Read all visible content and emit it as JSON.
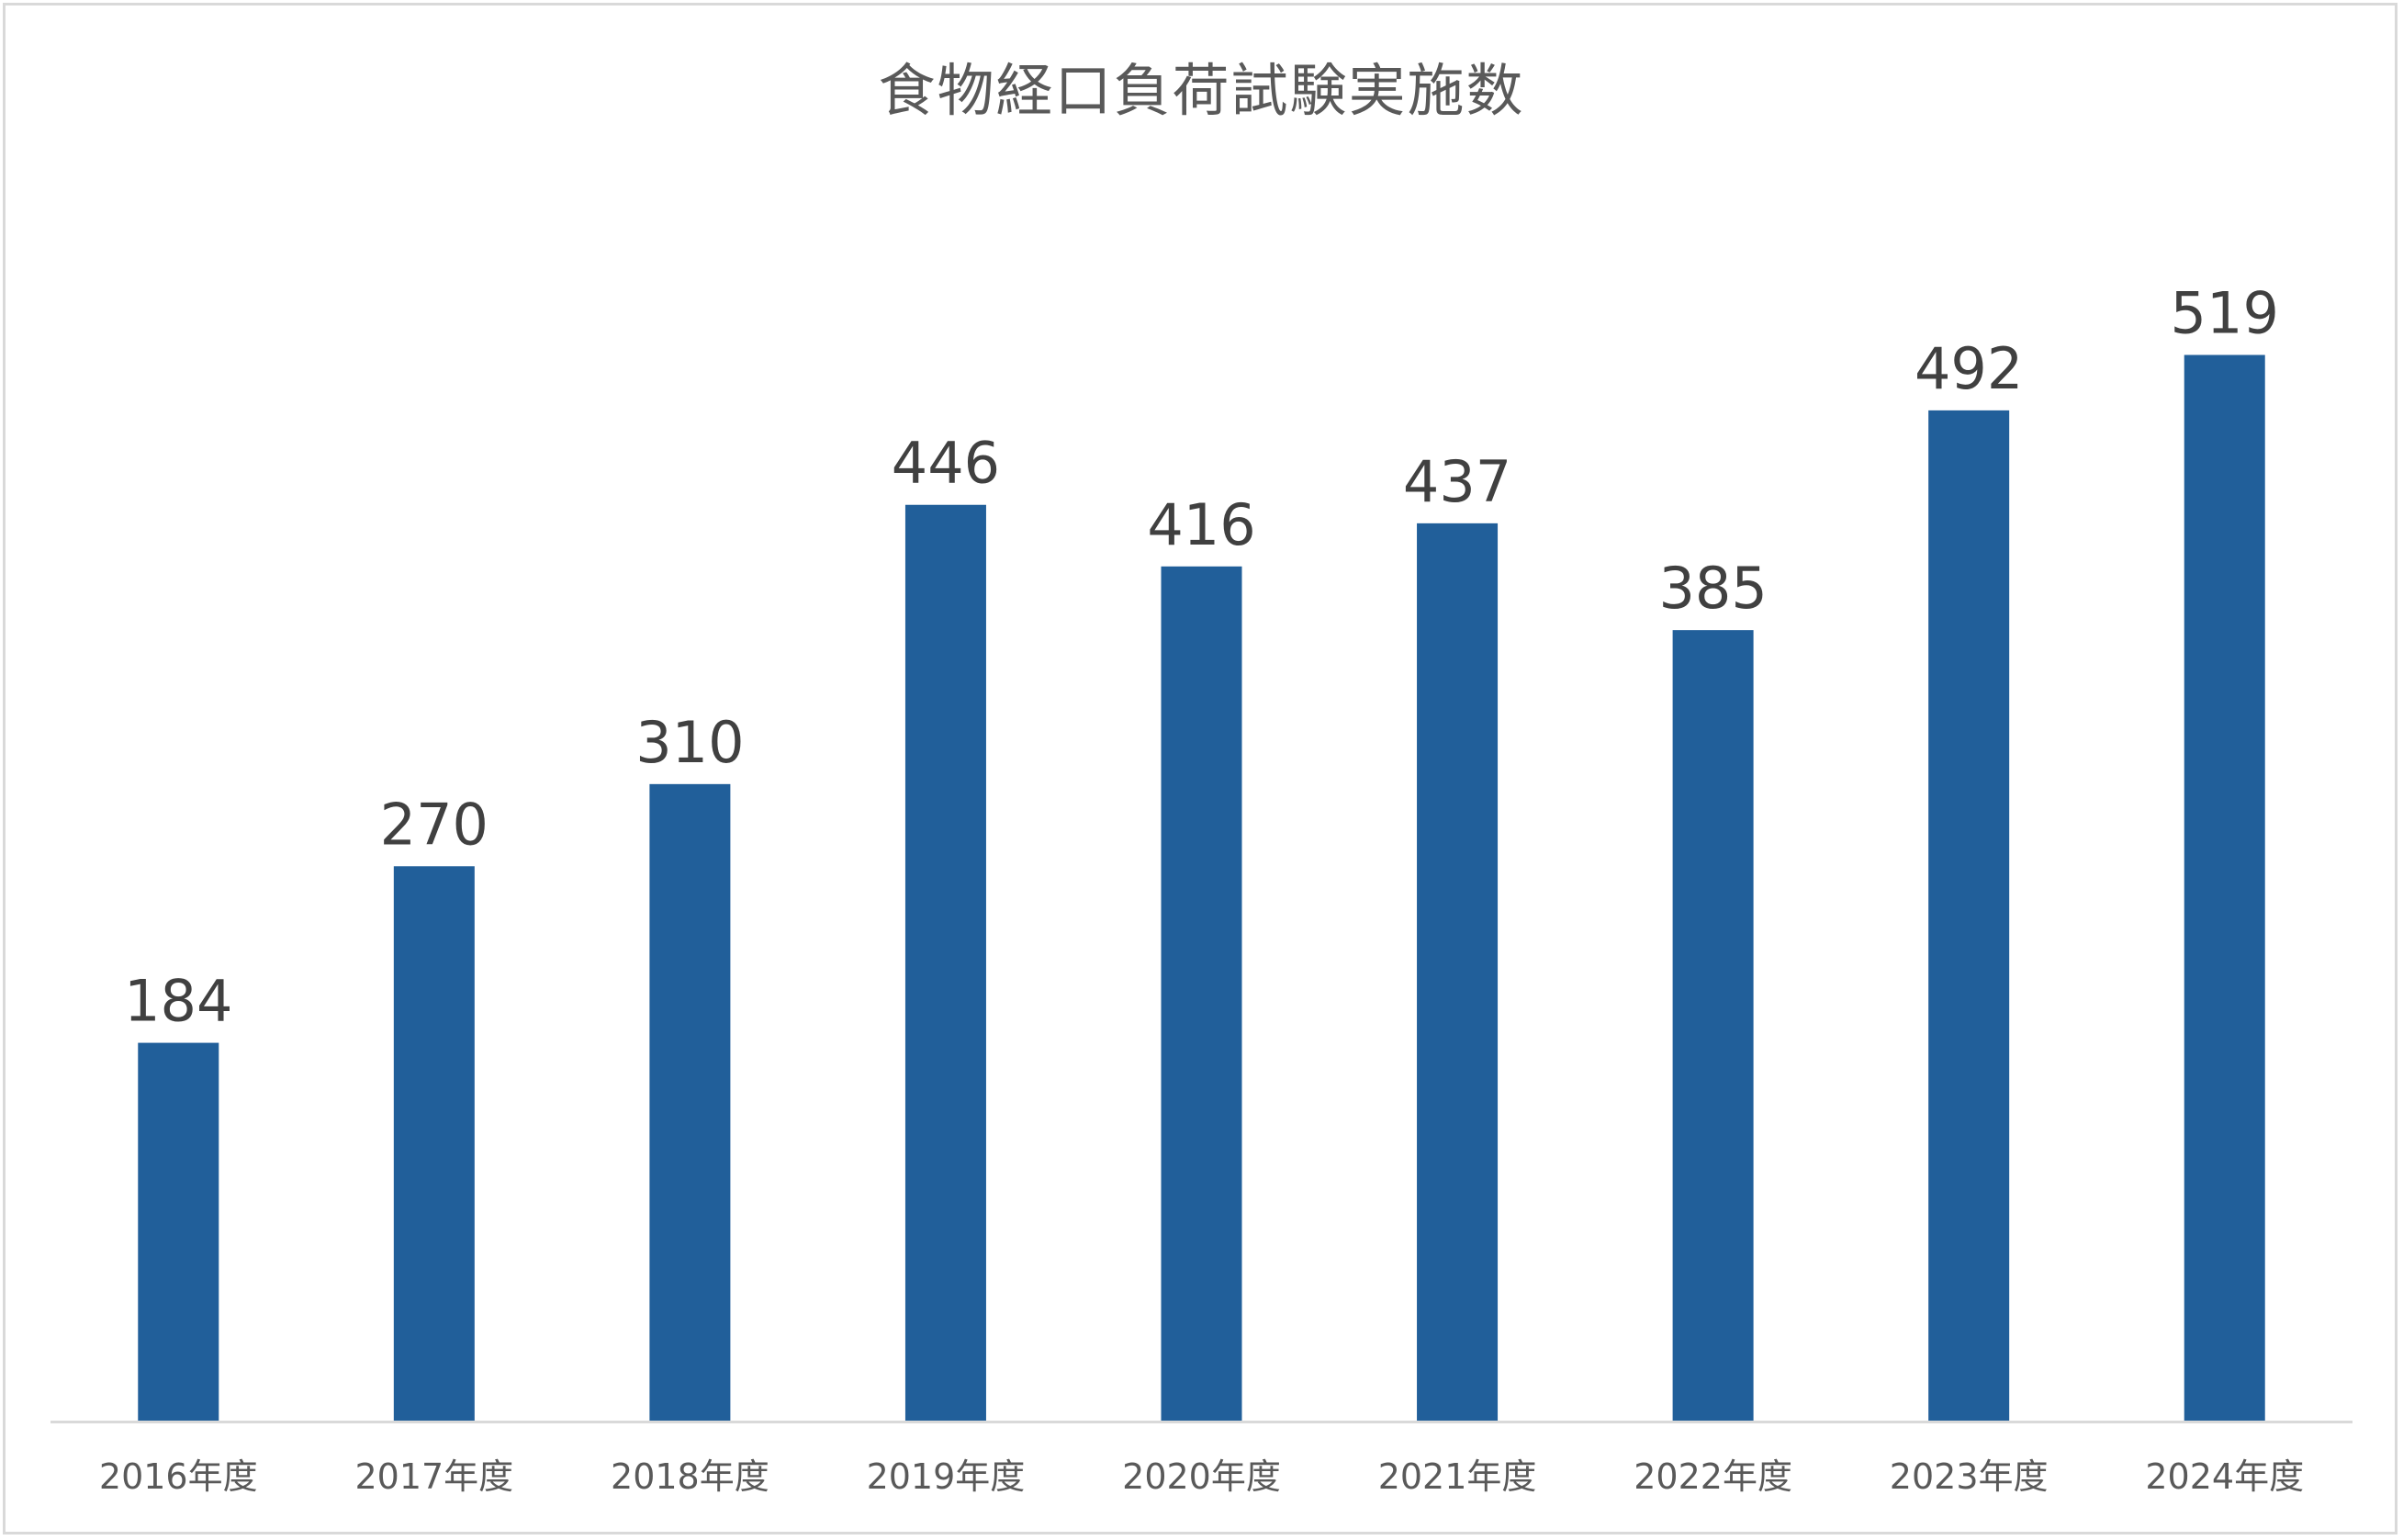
{
  "chart_data": {
    "type": "bar",
    "title": "食物経口負荷試験実施数",
    "categories": [
      "2016年度",
      "2017年度",
      "2018年度",
      "2019年度",
      "2020年度",
      "2021年度",
      "2022年度",
      "2023年度",
      "2024年度"
    ],
    "values": [
      184,
      270,
      310,
      446,
      416,
      437,
      385,
      492,
      519
    ],
    "xlabel": "",
    "ylabel": "",
    "ylim": [
      0,
      600
    ],
    "grid": false,
    "legend": "none",
    "data_labels": true,
    "colors": {
      "bar": "#215f9a",
      "axis": "#d9d9d9",
      "text": "#404040"
    }
  }
}
